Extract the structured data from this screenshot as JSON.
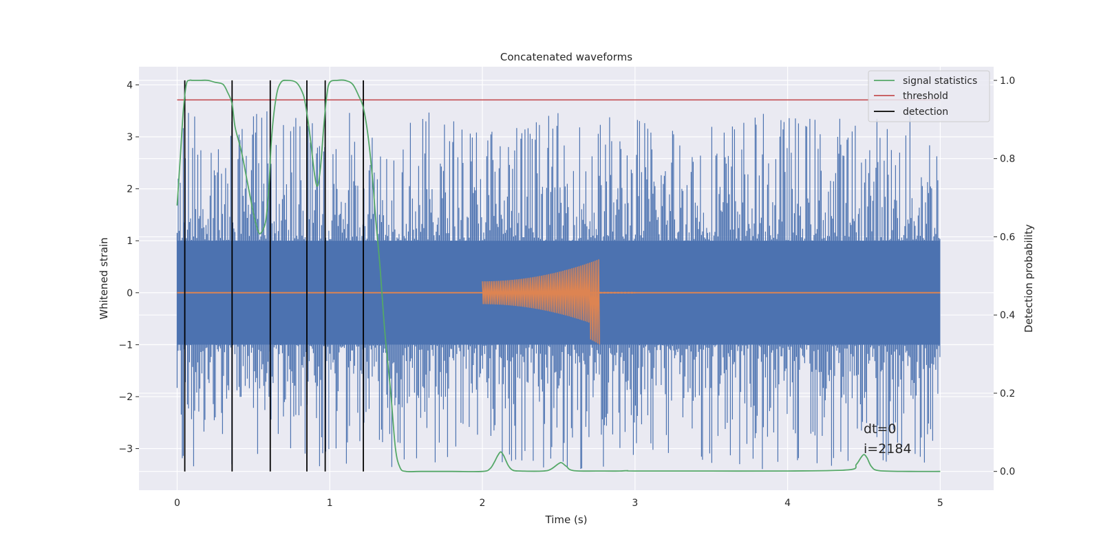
{
  "chart_data": {
    "type": "line",
    "title": "Concatenated waveforms",
    "xlabel": "Time (s)",
    "ylabel": "Whitened strain",
    "y2label": "Detection probability",
    "xlim": [
      -0.25,
      5.35
    ],
    "ylim": [
      -3.8,
      4.35
    ],
    "y2lim": [
      -0.048,
      1.035
    ],
    "xticks": [
      0,
      1,
      2,
      3,
      4,
      5
    ],
    "xtick_labels": [
      "0",
      "1",
      "2",
      "3",
      "4",
      "5"
    ],
    "yticks": [
      -3,
      -2,
      -1,
      0,
      1,
      2,
      3,
      4
    ],
    "ytick_labels": [
      "−3",
      "−2",
      "−1",
      "0",
      "1",
      "2",
      "3",
      "4"
    ],
    "y2ticks": [
      0.0,
      0.2,
      0.4,
      0.6,
      0.8,
      1.0
    ],
    "y2tick_labels": [
      "0.0",
      "0.2",
      "0.4",
      "0.6",
      "0.8",
      "1.0"
    ],
    "grid": true,
    "legend_position": "top-right",
    "colors": {
      "background": "#eaeaf2",
      "grid": "#ffffff",
      "strain": "#4c72b0",
      "template": "#dd8452",
      "signal": "#55a868",
      "threshold": "#c44e52",
      "detection": "#000000"
    },
    "series": [
      {
        "name": "signal statistics",
        "axis": "right",
        "x": [
          0.0,
          0.02,
          0.04,
          0.06,
          0.08,
          0.1,
          0.15,
          0.2,
          0.25,
          0.3,
          0.33,
          0.36,
          0.38,
          0.42,
          0.46,
          0.5,
          0.53,
          0.55,
          0.58,
          0.6,
          0.62,
          0.65,
          0.68,
          0.72,
          0.78,
          0.82,
          0.84,
          0.87,
          0.9,
          0.92,
          0.94,
          0.96,
          0.98,
          1.0,
          1.05,
          1.1,
          1.15,
          1.19,
          1.22,
          1.25,
          1.28,
          1.3,
          1.33,
          1.36,
          1.4,
          1.43,
          1.46,
          1.5,
          1.6,
          1.8,
          2.0,
          2.05,
          2.08,
          2.1,
          2.12,
          2.14,
          2.17,
          2.2,
          2.25,
          2.4,
          2.45,
          2.5,
          2.52,
          2.55,
          2.6,
          2.8,
          2.9,
          2.95,
          3.0,
          3.5,
          4.0,
          4.4,
          4.45,
          4.48,
          4.5,
          4.52,
          4.55,
          4.6,
          4.8,
          5.0
        ],
        "values": [
          0.68,
          0.8,
          0.92,
          0.99,
          1.0,
          1.0,
          1.0,
          1.0,
          0.995,
          0.99,
          0.97,
          0.94,
          0.88,
          0.82,
          0.74,
          0.66,
          0.615,
          0.61,
          0.64,
          0.72,
          0.86,
          0.96,
          0.995,
          1.0,
          0.995,
          0.97,
          0.94,
          0.86,
          0.76,
          0.73,
          0.78,
          0.88,
          0.96,
          0.995,
          1.0,
          1.0,
          0.99,
          0.96,
          0.93,
          0.86,
          0.75,
          0.65,
          0.52,
          0.36,
          0.2,
          0.06,
          0.01,
          0.0,
          0.0,
          0.0,
          0.0,
          0.007,
          0.025,
          0.04,
          0.05,
          0.04,
          0.015,
          0.003,
          0.001,
          0.001,
          0.006,
          0.02,
          0.022,
          0.013,
          0.002,
          0.001,
          0.001,
          0.002,
          0.001,
          0.001,
          0.001,
          0.004,
          0.018,
          0.035,
          0.043,
          0.035,
          0.012,
          0.002,
          0.0,
          0.0
        ]
      },
      {
        "name": "threshold",
        "axis": "right",
        "x": [
          0.0,
          5.0
        ],
        "values": [
          0.95,
          0.95
        ]
      },
      {
        "name": "detection",
        "axis": "right",
        "x": [
          0.05,
          0.36,
          0.61,
          0.85,
          0.97,
          1.22
        ],
        "ymin": 0.0,
        "ymax": 1.0
      }
    ],
    "strain": {
      "axis": "left",
      "x_range": [
        0.0,
        5.0
      ],
      "core_amplitude": 1.0,
      "peak_range": [
        -3.4,
        3.5
      ]
    },
    "template_waveform": {
      "axis": "left",
      "x_range": [
        2.0,
        2.77
      ],
      "envelope_start": 0.22,
      "envelope_end": 0.65,
      "envelope_end_negative": -1.0,
      "tail_end": 3.0
    },
    "annotations": [
      "dt=0",
      "i=2184"
    ]
  }
}
